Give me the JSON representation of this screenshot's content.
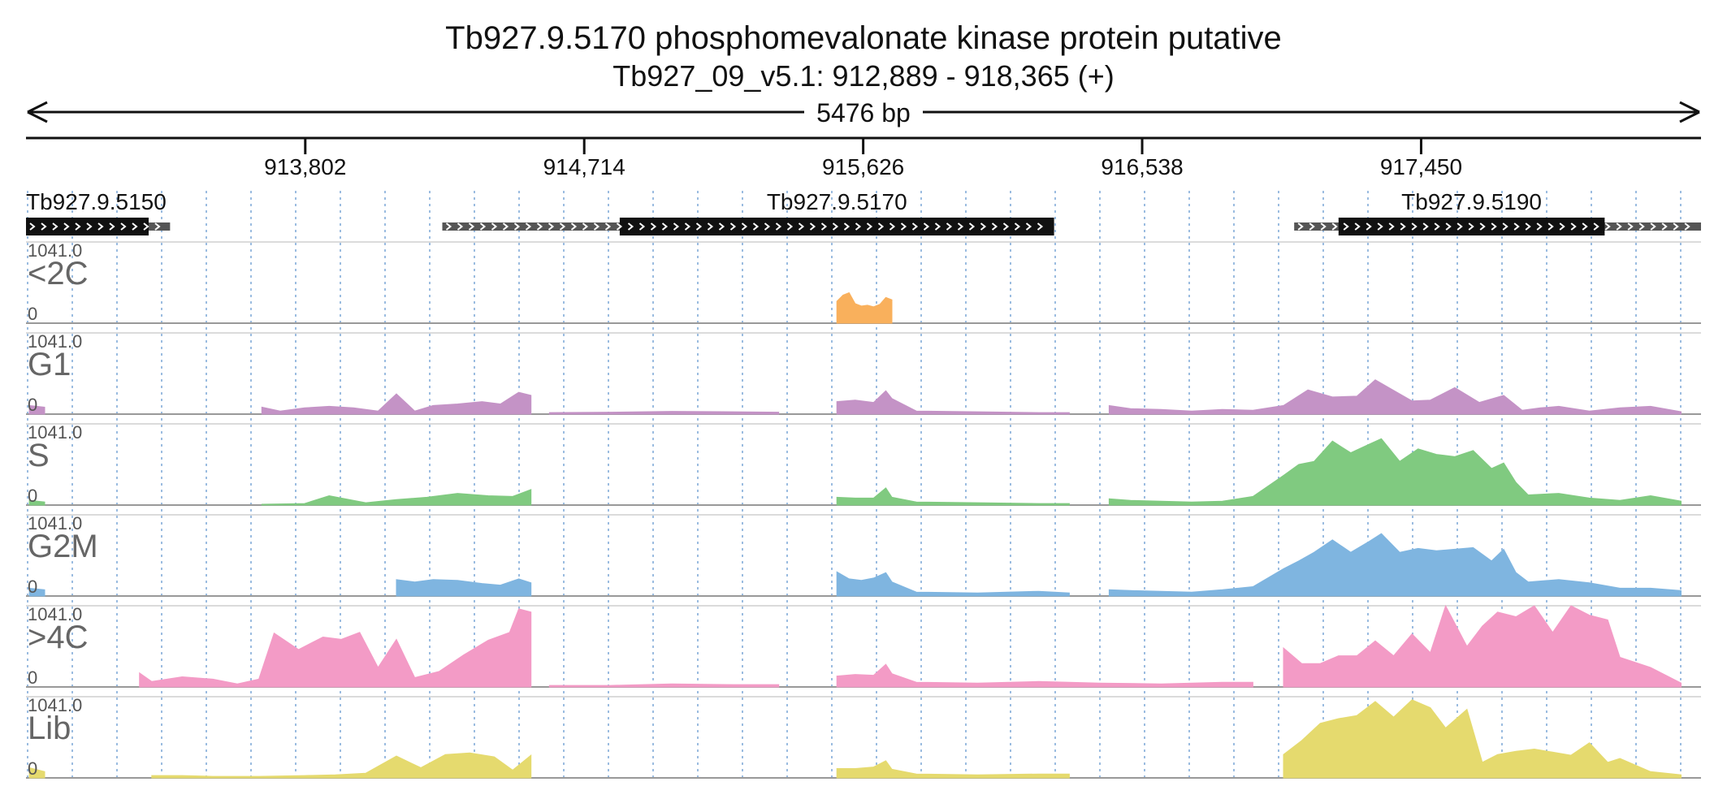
{
  "header": {
    "title": "Tb927.9.5170  phosphomevalonate kinase protein  putative",
    "locus": "Tb927_09_v5.1: 912,889 - 918,365 (+)",
    "length_label": "5476 bp"
  },
  "chart_data": {
    "type": "area",
    "title": "Tb927.9.5170  phosphomevalonate kinase protein  putative",
    "xlabel": "",
    "ylabel": "",
    "region": {
      "chrom": "Tb927_09_v5.1",
      "start": 912889,
      "end": 918365,
      "strand": "+"
    },
    "x_ticks": [
      913802,
      914714,
      915626,
      916538,
      917450
    ],
    "x_tick_labels": [
      "913,802",
      "914,714",
      "915,626",
      "916,538",
      "917,450"
    ],
    "ylim": [
      0,
      1041.0
    ],
    "y_max_label": "1041.0",
    "y_min_label": "0",
    "grid": "vertical-dotted",
    "genes": [
      {
        "name": "Tb927.9.5150",
        "start": 912889,
        "end": 913360,
        "cds_start": 912889,
        "cds_end": 913290
      },
      {
        "name": "Tb927.9.5170",
        "start": 914250,
        "end": 918365,
        "cds_start": 914830,
        "cds_end": 916250,
        "span_end": 916250
      },
      {
        "name": "Tb927.9.5190",
        "start": 917035,
        "end": 918365,
        "cds_start": 917180,
        "cds_end": 918050
      }
    ],
    "tracks": [
      {
        "name": "<2C",
        "color": "#f9b05c",
        "segments": [
          {
            "x": [
              915540,
              915560,
              915580,
              915600,
              915620,
              915640,
              915660,
              915680,
              915700,
              915720
            ],
            "y": [
              280,
              360,
              390,
              250,
              220,
              230,
              210,
              240,
              330,
              300
            ]
          }
        ]
      },
      {
        "name": "G1",
        "color": "#c493c6",
        "segments": [
          {
            "x": [
              912900,
              912950
            ],
            "y": [
              110,
              90
            ]
          },
          {
            "x": [
              913660,
              913720,
              913800,
              913880,
              913960,
              914040,
              914100,
              914160,
              914220,
              914300,
              914380,
              914440,
              914500,
              914540
            ],
            "y": [
              90,
              40,
              80,
              100,
              80,
              40,
              260,
              40,
              110,
              130,
              160,
              130,
              280,
              240
            ]
          },
          {
            "x": [
              914600,
              914800,
              915000,
              915200,
              915350
            ],
            "y": [
              20,
              25,
              35,
              30,
              25
            ]
          },
          {
            "x": [
              915540,
              915600,
              915660,
              915700,
              915720,
              915800,
              916000,
              916200,
              916300
            ],
            "y": [
              160,
              180,
              150,
              300,
              200,
              40,
              30,
              20,
              20
            ]
          },
          {
            "x": [
              916430,
              916500,
              916600,
              916700,
              916800,
              916900,
              917000,
              917080,
              917160,
              917240,
              917300,
              917380,
              917420,
              917480,
              917560,
              917640,
              917720,
              917780,
              917840,
              917900,
              918000,
              918100,
              918200,
              918300
            ],
            "y": [
              110,
              70,
              60,
              40,
              60,
              50,
              110,
              310,
              220,
              230,
              440,
              260,
              170,
              180,
              340,
              150,
              240,
              50,
              80,
              100,
              40,
              80,
              100,
              30
            ]
          }
        ]
      },
      {
        "name": "S",
        "color": "#80ca80",
        "segments": [
          {
            "x": [
              912900,
              912950
            ],
            "y": [
              60,
              40
            ]
          },
          {
            "x": [
              913660,
              913800,
              913880,
              914000,
              914100,
              914200,
              914300,
              914400,
              914480,
              914540
            ],
            "y": [
              10,
              20,
              120,
              30,
              70,
              100,
              150,
              120,
              110,
              200
            ]
          },
          {
            "x": [
              915540,
              915600,
              915660,
              915700,
              915720,
              915800,
              916000,
              916200,
              916300
            ],
            "y": [
              100,
              90,
              90,
              220,
              100,
              40,
              30,
              20,
              20
            ]
          },
          {
            "x": [
              916430,
              916500,
              916600,
              916700,
              916800,
              916900,
              917000,
              917050,
              917100,
              917160,
              917220,
              917280,
              917320,
              917380,
              917440,
              917500,
              917560,
              917620,
              917680,
              917720,
              917760,
              917800,
              917900,
              918000,
              918100,
              918200,
              918300
            ],
            "y": [
              80,
              60,
              50,
              40,
              50,
              110,
              380,
              520,
              560,
              820,
              670,
              780,
              850,
              560,
              720,
              650,
              620,
              700,
              470,
              540,
              290,
              130,
              150,
              90,
              60,
              120,
              50
            ]
          }
        ]
      },
      {
        "name": "G2M",
        "color": "#7fb5e0",
        "segments": [
          {
            "x": [
              912900,
              912950
            ],
            "y": [
              100,
              80
            ]
          },
          {
            "x": [
              914100,
              914160,
              914220,
              914300,
              914380,
              914440,
              914500,
              914540
            ],
            "y": [
              210,
              180,
              210,
              200,
              160,
              140,
              220,
              170
            ]
          },
          {
            "x": [
              915540,
              915580,
              915620,
              915660,
              915700,
              915720,
              915800,
              916000,
              916200,
              916300
            ],
            "y": [
              310,
              220,
              200,
              230,
              300,
              180,
              50,
              40,
              60,
              40
            ]
          },
          {
            "x": [
              916430,
              916500,
              916600,
              916700,
              916800,
              916900,
              917000,
              917050,
              917100,
              917160,
              917220,
              917280,
              917320,
              917380,
              917440,
              917500,
              917560,
              917620,
              917680,
              917720,
              917760,
              917800,
              917900,
              918000,
              918100,
              918200,
              918300
            ],
            "y": [
              80,
              70,
              60,
              50,
              80,
              120,
              350,
              450,
              560,
              720,
              560,
              700,
              800,
              560,
              610,
              580,
              600,
              620,
              450,
              600,
              300,
              180,
              210,
              170,
              100,
              100,
              70
            ]
          }
        ]
      },
      {
        "name": ">4C",
        "color": "#f39bc6",
        "segments": [
          {
            "x": [
              913260,
              913300,
              913400,
              913500,
              913580,
              913650,
              913700,
              913780,
              913860,
              913920,
              913980,
              914040,
              914100,
              914160,
              914240,
              914320,
              914400,
              914470,
              914500,
              914540
            ],
            "y": [
              180,
              70,
              130,
              100,
              40,
              100,
              690,
              480,
              640,
              610,
              700,
              250,
              610,
              120,
              200,
              410,
              600,
              700,
              1000,
              960
            ]
          },
          {
            "x": [
              914600,
              914800,
              915000,
              915200,
              915350
            ],
            "y": [
              20,
              20,
              40,
              30,
              30
            ]
          },
          {
            "x": [
              915540,
              915600,
              915660,
              915700,
              915720,
              915800,
              916000,
              916200,
              916300,
              916400,
              916600,
              916800,
              916900
            ],
            "y": [
              140,
              160,
              150,
              290,
              170,
              60,
              50,
              70,
              60,
              50,
              40,
              60,
              60
            ]
          },
          {
            "x": [
              917000,
              917060,
              917120,
              917180,
              917240,
              917300,
              917360,
              917420,
              917480,
              917530,
              917600,
              917650,
              917700,
              917760,
              917820,
              917880,
              917940,
              918000,
              918060,
              918100,
              918200,
              918300
            ],
            "y": [
              500,
              300,
              300,
              400,
              400,
              590,
              400,
              680,
              440,
              1041,
              520,
              780,
              960,
              900,
              1041,
              700,
              1041,
              920,
              860,
              380,
              250,
              50
            ]
          }
        ]
      },
      {
        "name": "Lib",
        "color": "#e5da6e",
        "segments": [
          {
            "x": [
              912900,
              912950
            ],
            "y": [
              130,
              80
            ]
          },
          {
            "x": [
              913300,
              913400,
              913500,
              913650,
              913800,
              913900,
              914000,
              914100,
              914180,
              914260,
              914340,
              914420,
              914480,
              914540
            ],
            "y": [
              30,
              30,
              20,
              20,
              30,
              40,
              60,
              280,
              130,
              300,
              320,
              270,
              100,
              290
            ]
          },
          {
            "x": [
              915540,
              915600,
              915660,
              915700,
              915720,
              915800,
              916000,
              916200,
              916300
            ],
            "y": [
              120,
              120,
              140,
              220,
              110,
              50,
              40,
              50,
              50
            ]
          },
          {
            "x": [
              917000,
              917060,
              917120,
              917180,
              917240,
              917300,
              917360,
              917420,
              917480,
              917530,
              917600,
              917650,
              917700,
              917760,
              917820,
              917880,
              917940,
              918000,
              918060,
              918100,
              918200,
              918300
            ],
            "y": [
              300,
              480,
              700,
              760,
              800,
              980,
              780,
              1000,
              900,
              640,
              880,
              200,
              300,
              340,
              370,
              330,
              290,
              450,
              200,
              250,
              80,
              40
            ]
          }
        ]
      }
    ]
  }
}
